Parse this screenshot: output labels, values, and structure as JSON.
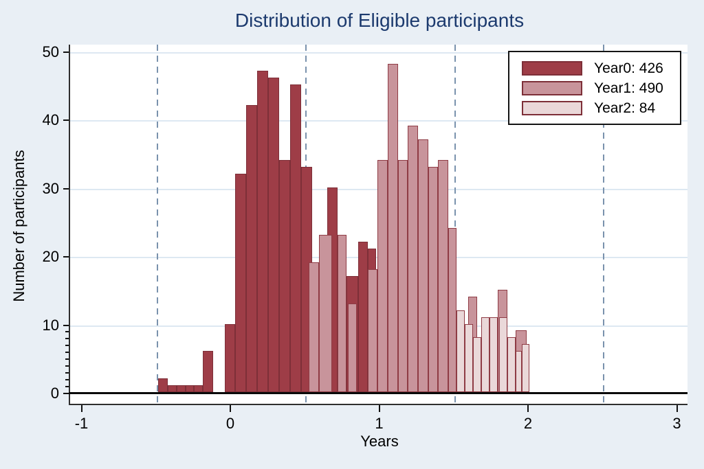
{
  "title": "Distribution of Eligible participants",
  "legend": {
    "items": [
      {
        "label": "Year0: 426",
        "series": "Year0",
        "total": 426,
        "color": "#9e3d47"
      },
      {
        "label": "Year1: 490",
        "series": "Year1",
        "total": 490,
        "color": "#c8949b"
      },
      {
        "label": "Year2: 84",
        "series": "Year2",
        "total": 84,
        "color": "#ead8d9"
      }
    ]
  },
  "chart_data": {
    "type": "bar",
    "subtype": "overlaid-histograms",
    "title": "Distribution of Eligible participants",
    "xlabel": "Years",
    "ylabel": "Number of participants",
    "xlim": [
      -1.09,
      3.07
    ],
    "ylim": [
      0,
      51
    ],
    "x_ticks": [
      -1,
      0,
      1,
      2,
      3
    ],
    "y_ticks": [
      0,
      10,
      20,
      30,
      40,
      50
    ],
    "y_minor_ticks": [
      1,
      2,
      3,
      4,
      5,
      6,
      7,
      8,
      9
    ],
    "grid": "horizontal-light-blue",
    "dashed_vlines": [
      -0.5,
      0.5,
      1.5,
      2.5
    ],
    "legend_position": "top-right-inside",
    "series": [
      {
        "name": "Year0",
        "total": 426,
        "fill": "#9e3d47",
        "stroke": "#7d2f38",
        "bins": [
          {
            "x0": -0.494,
            "x1": -0.43,
            "count": 2
          },
          {
            "x0": -0.43,
            "x1": -0.37,
            "count": 1
          },
          {
            "x0": -0.37,
            "x1": -0.309,
            "count": 1
          },
          {
            "x0": -0.309,
            "x1": -0.254,
            "count": 1
          },
          {
            "x0": -0.254,
            "x1": -0.194,
            "count": 1
          },
          {
            "x0": -0.194,
            "x1": -0.125,
            "count": 6
          },
          {
            "x0": -0.046,
            "x1": 0.023,
            "count": 10
          },
          {
            "x0": 0.023,
            "x1": 0.097,
            "count": 32
          },
          {
            "x0": 0.097,
            "x1": 0.171,
            "count": 42
          },
          {
            "x0": 0.171,
            "x1": 0.245,
            "count": 47
          },
          {
            "x0": 0.245,
            "x1": 0.319,
            "count": 46
          },
          {
            "x0": 0.319,
            "x1": 0.393,
            "count": 34
          },
          {
            "x0": 0.393,
            "x1": 0.467,
            "count": 45
          },
          {
            "x0": 0.467,
            "x1": 0.54,
            "count": 33
          },
          {
            "x0": 0.642,
            "x1": 0.711,
            "count": 30
          },
          {
            "x0": 0.771,
            "x1": 0.85,
            "count": 17
          },
          {
            "x0": 0.85,
            "x1": 0.915,
            "count": 22
          },
          {
            "x0": 0.915,
            "x1": 0.97,
            "count": 21
          }
        ]
      },
      {
        "name": "Year1",
        "total": 490,
        "fill": "#c8949b",
        "stroke": "#8e3b44",
        "bins": [
          {
            "x0": 0.517,
            "x1": 0.587,
            "count": 19
          },
          {
            "x0": 0.587,
            "x1": 0.674,
            "count": 23
          },
          {
            "x0": 0.711,
            "x1": 0.771,
            "count": 23
          },
          {
            "x0": 0.781,
            "x1": 0.841,
            "count": 13
          },
          {
            "x0": 0.915,
            "x1": 0.979,
            "count": 18
          },
          {
            "x0": 0.979,
            "x1": 1.048,
            "count": 34
          },
          {
            "x0": 1.048,
            "x1": 1.118,
            "count": 48
          },
          {
            "x0": 1.118,
            "x1": 1.182,
            "count": 34
          },
          {
            "x0": 1.182,
            "x1": 1.252,
            "count": 39
          },
          {
            "x0": 1.252,
            "x1": 1.321,
            "count": 37
          },
          {
            "x0": 1.321,
            "x1": 1.386,
            "count": 33
          },
          {
            "x0": 1.386,
            "x1": 1.455,
            "count": 34
          },
          {
            "x0": 1.455,
            "x1": 1.51,
            "count": 24
          },
          {
            "x0": 1.589,
            "x1": 1.649,
            "count": 14
          },
          {
            "x0": 1.788,
            "x1": 1.852,
            "count": 15
          },
          {
            "x0": 1.908,
            "x1": 1.982,
            "count": 9
          }
        ]
      },
      {
        "name": "Year2",
        "total": 84,
        "fill": "#ead8d9",
        "stroke": "#8e3b44",
        "bins": [
          {
            "x0": 1.51,
            "x1": 1.566,
            "count": 12
          },
          {
            "x0": 1.566,
            "x1": 1.621,
            "count": 10
          },
          {
            "x0": 1.621,
            "x1": 1.677,
            "count": 8
          },
          {
            "x0": 1.677,
            "x1": 1.732,
            "count": 11
          },
          {
            "x0": 1.732,
            "x1": 1.788,
            "count": 11
          },
          {
            "x0": 1.797,
            "x1": 1.852,
            "count": 11
          },
          {
            "x0": 1.852,
            "x1": 1.908,
            "count": 8
          },
          {
            "x0": 1.908,
            "x1": 1.949,
            "count": 6
          },
          {
            "x0": 1.949,
            "x1": 2.0,
            "count": 7
          }
        ]
      }
    ]
  }
}
